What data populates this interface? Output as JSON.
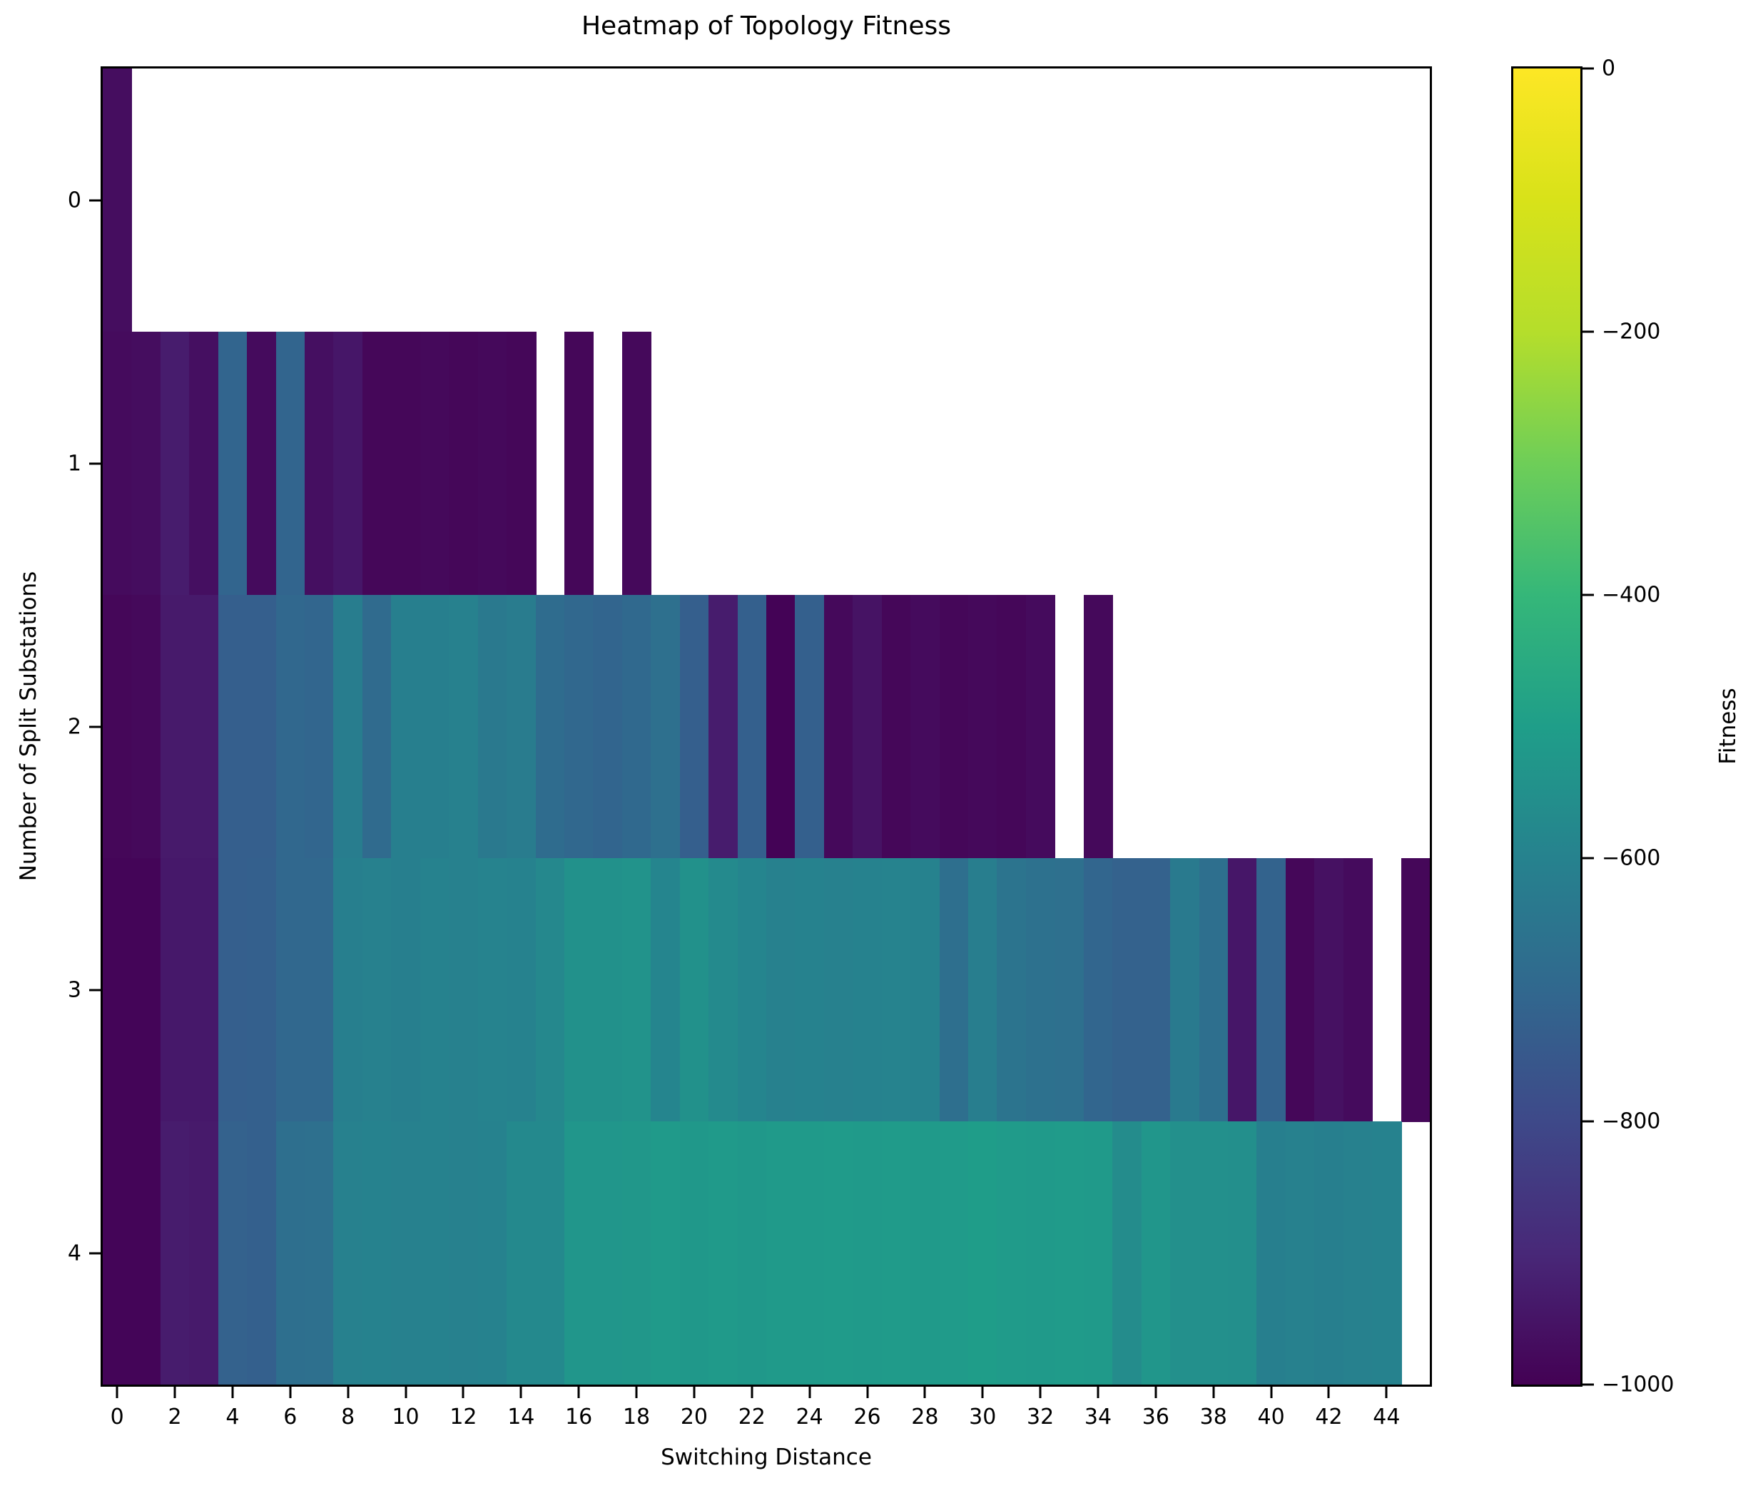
{
  "figure": {
    "title": "Heatmap of Topology Fitness",
    "xlabel": "Switching Distance",
    "ylabel": "Number of Split Substations"
  },
  "colorbar": {
    "label": "Fitness",
    "tick_labels": [
      "0",
      "−200",
      "−400",
      "−600",
      "−800",
      "−1000"
    ],
    "tick_values": [
      0,
      -200,
      -400,
      -600,
      -800,
      -1000
    ]
  },
  "chart_data": {
    "type": "heatmap",
    "title": "Heatmap of Topology Fitness",
    "xlabel": "Switching Distance",
    "ylabel": "Number of Split Substations",
    "x_tick_labels": [
      0,
      2,
      4,
      6,
      8,
      10,
      12,
      14,
      16,
      18,
      20,
      22,
      24,
      26,
      28,
      30,
      32,
      34,
      36,
      38,
      40,
      42,
      44
    ],
    "y_tick_labels": [
      0,
      1,
      2,
      3,
      4
    ],
    "n_cols": 46,
    "n_rows": 5,
    "vmin": -1000,
    "vmax": 0,
    "grid": false,
    "legend_position": "right-colorbar",
    "colormap": {
      "name": "viridis",
      "stops": [
        "#440154",
        "#482878",
        "#3e4989",
        "#31688e",
        "#26828e",
        "#1f9e89",
        "#35b779",
        "#6ece58",
        "#b5de2b",
        "#d8e219",
        "#fde725"
      ]
    },
    "missing_color": "#ffffff",
    "values": [
      [
        -970,
        null,
        null,
        null,
        null,
        null,
        null,
        null,
        null,
        null,
        null,
        null,
        null,
        null,
        null,
        null,
        null,
        null,
        null,
        null,
        null,
        null,
        null,
        null,
        null,
        null,
        null,
        null,
        null,
        null,
        null,
        null,
        null,
        null,
        null,
        null,
        null,
        null,
        null,
        null,
        null,
        null,
        null,
        null,
        null,
        null
      ],
      [
        -975,
        -970,
        -930,
        -965,
        -710,
        -975,
        -710,
        -965,
        -945,
        -985,
        -985,
        -980,
        -985,
        -980,
        -985,
        null,
        -985,
        null,
        -980,
        null,
        null,
        null,
        null,
        null,
        null,
        null,
        null,
        null,
        null,
        null,
        null,
        null,
        null,
        null,
        null,
        null,
        null,
        null,
        null,
        null,
        null,
        null,
        null,
        null,
        null,
        null
      ],
      [
        -985,
        -980,
        -935,
        -935,
        -730,
        -730,
        -700,
        -705,
        -620,
        -690,
        -610,
        -610,
        -605,
        -635,
        -625,
        -685,
        -700,
        -710,
        -695,
        -670,
        -730,
        -930,
        -725,
        -995,
        -725,
        -980,
        -955,
        -985,
        -975,
        -985,
        -980,
        -985,
        -975,
        null,
        -980,
        null,
        null,
        null,
        null,
        null,
        null,
        null,
        null,
        null,
        null,
        null
      ],
      [
        -990,
        -990,
        -940,
        -940,
        -730,
        -725,
        -700,
        -700,
        -610,
        -605,
        -610,
        -600,
        -605,
        -595,
        -600,
        -580,
        -545,
        -545,
        -540,
        -590,
        -545,
        -570,
        -590,
        -605,
        -600,
        -605,
        -600,
        -595,
        -600,
        -675,
        -615,
        -655,
        -665,
        -670,
        -705,
        -720,
        -720,
        -630,
        -675,
        -945,
        -715,
        -985,
        -960,
        -975,
        null,
        -985
      ],
      [
        -990,
        -990,
        -930,
        -935,
        -720,
        -725,
        -675,
        -670,
        -605,
        -600,
        -605,
        -600,
        -605,
        -600,
        -575,
        -575,
        -530,
        -530,
        -525,
        -515,
        -520,
        -515,
        -520,
        -515,
        -515,
        -510,
        -515,
        -510,
        -515,
        -510,
        -505,
        -510,
        -515,
        -510,
        -515,
        -565,
        -530,
        -550,
        -550,
        -555,
        -610,
        -605,
        -610,
        -605,
        -600,
        null
      ]
    ]
  }
}
